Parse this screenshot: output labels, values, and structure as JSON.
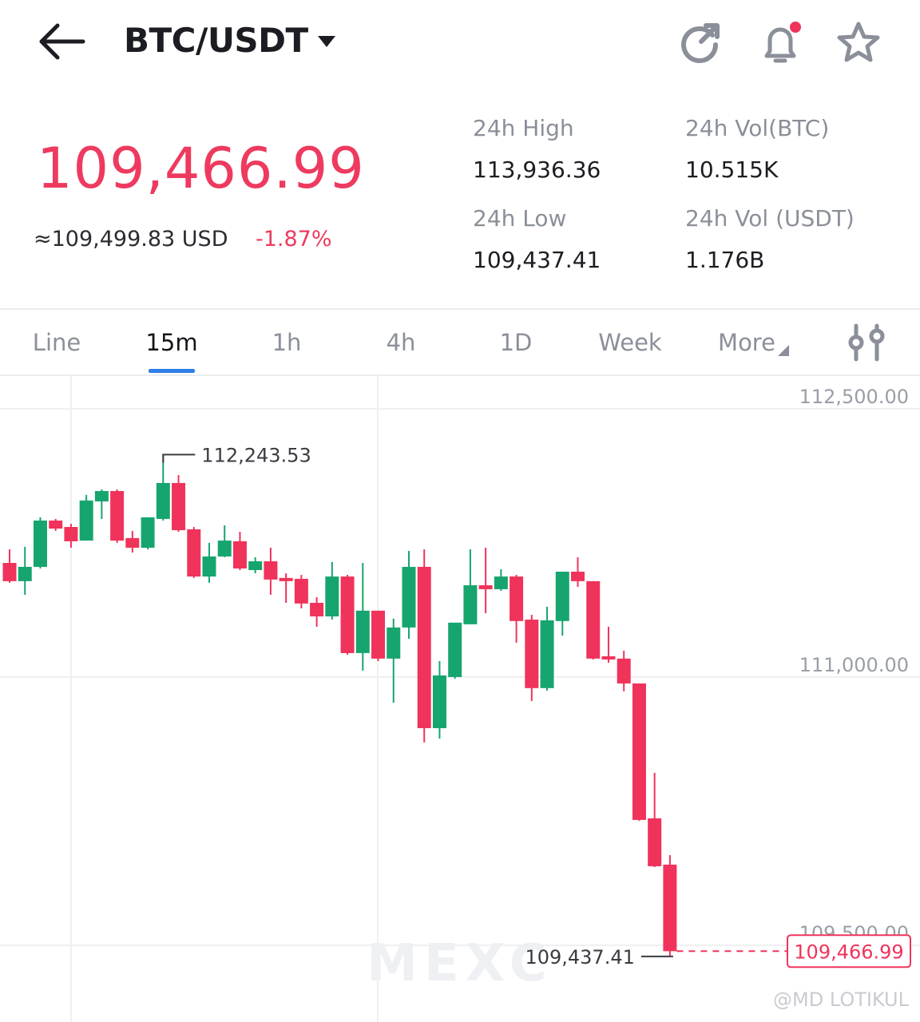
{
  "header": {
    "pair": "BTC/USDT"
  },
  "price": {
    "last": "109,466.99",
    "usd": "≈109,499.83 USD",
    "change": "-1.87%"
  },
  "stats": [
    {
      "label": "24h High",
      "value": "113,936.36"
    },
    {
      "label": "24h Vol(BTC)",
      "value": "10.515K"
    },
    {
      "label": "24h Low",
      "value": "109,437.41"
    },
    {
      "label": "24h Vol (USDT)",
      "value": "1.176B"
    }
  ],
  "tabs": [
    "Line",
    "15m",
    "1h",
    "4h",
    "1D",
    "Week",
    "More"
  ],
  "active_tab": 1,
  "chart_data": {
    "type": "candlestick",
    "up_color": "#16a56f",
    "down_color": "#f0335b",
    "open": [
      111638,
      111536,
      111616,
      111875,
      111839,
      111763,
      111982,
      112040,
      111777,
      111723,
      111884,
      112085,
      111826,
      111562,
      111674,
      111759,
      111598,
      111647,
      111554,
      111549,
      111415,
      111339,
      111562,
      111134,
      111371,
      111103,
      111277,
      111616,
      110714,
      111000,
      111295,
      111513,
      111491,
      111562,
      111321,
      110938,
      111313,
      111589,
      111536,
      111116,
      111103,
      110964,
      110210,
      109951
    ],
    "high": [
      111714,
      111728,
      111893,
      111884,
      111857,
      112018,
      112049,
      112049,
      111817,
      111893,
      112243.53,
      112129,
      111839,
      111750,
      111848,
      111812,
      111670,
      111723,
      111580,
      111571,
      111446,
      111643,
      111571,
      111638,
      111371,
      111326,
      111705,
      111714,
      111089,
      111304,
      111714,
      111723,
      111603,
      111571,
      111348,
      111393,
      111589,
      111670,
      111536,
      111281,
      111147,
      110964,
      110464,
      110004
    ],
    "low": [
      111527,
      111460,
      111607,
      111817,
      111723,
      111763,
      111884,
      111750,
      111696,
      111714,
      111875,
      111812,
      111554,
      111527,
      111670,
      111598,
      111580,
      111460,
      111415,
      111384,
      111281,
      111321,
      111125,
      111036,
      111089,
      110857,
      111214,
      110634,
      110656,
      110991,
      111295,
      111357,
      111482,
      111192,
      110866,
      110924,
      111232,
      111504,
      111098,
      111080,
      110920,
      110196,
      109937,
      109437.41
    ],
    "close": [
      111536,
      111616,
      111875,
      111830,
      111759,
      111987,
      112040,
      111763,
      111723,
      111893,
      112085,
      111821,
      111562,
      111674,
      111763,
      111607,
      111647,
      111545,
      111536,
      111411,
      111339,
      111562,
      111134,
      111371,
      111103,
      111277,
      111616,
      110714,
      111009,
      111304,
      111513,
      111491,
      111562,
      111313,
      110938,
      111317,
      111589,
      111536,
      111103,
      111098,
      110964,
      110201,
      109942,
      109466.99
    ],
    "ylim": [
      109071,
      112665
    ],
    "yticks": [
      {
        "value": 112500,
        "label": "112,500.00"
      },
      {
        "value": 111000,
        "label": "111,000.00"
      },
      {
        "value": 109500,
        "label": "109,500.00"
      }
    ],
    "grid": true,
    "high_marker": {
      "value": 112243.53,
      "label": "112,243.53"
    },
    "low_marker": {
      "value": 109437.41,
      "label": "109,437.41"
    },
    "last_price": {
      "value": 109466.99,
      "label": "109,466.99"
    }
  },
  "watermarks": [
    "MEXC",
    "@MD LOTIKUL"
  ]
}
